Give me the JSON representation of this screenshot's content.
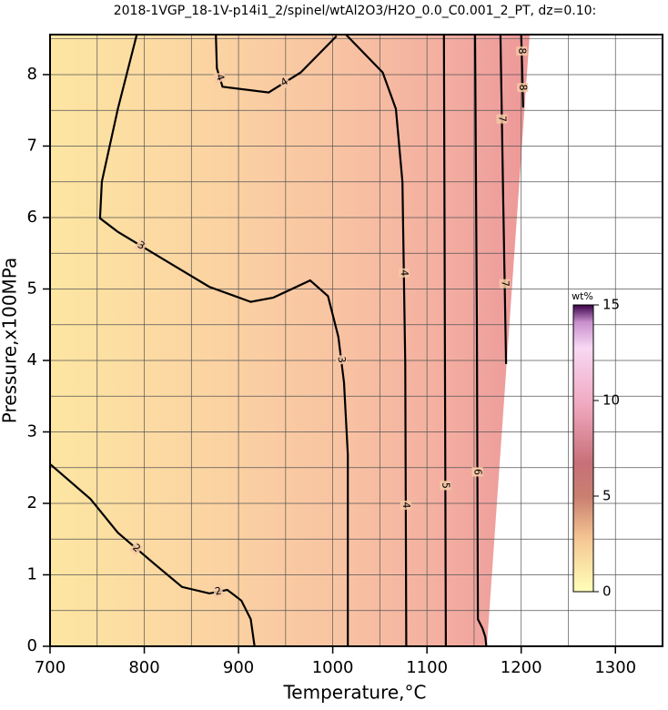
{
  "chart_data": {
    "type": "contour",
    "title": "2018-1VGP_18-1V-p14i1_2/spinel/wtAl2O3/H2O_0.0_C0.001_2_PT, dz=0.10:",
    "x_label": "Temperature,°C",
    "y_label": "Pressure,x100MPa",
    "xlim": [
      700,
      1350
    ],
    "ylim": [
      0,
      8.56
    ],
    "xticks": [
      700,
      800,
      900,
      1000,
      1100,
      1200,
      1300
    ],
    "yticks": [
      0,
      1,
      2,
      3,
      4,
      5,
      6,
      7,
      8
    ],
    "grid": true,
    "contours": [
      {
        "level": 2,
        "x": [
          700,
          743,
          772,
          811,
          840,
          869,
          888,
          903,
          913,
          917
        ],
        "y": [
          2.55,
          2.06,
          1.59,
          1.15,
          0.83,
          0.74,
          0.79,
          0.64,
          0.38,
          0
        ]
      },
      {
        "level": 3,
        "x": [
          792,
          772,
          755,
          753,
          772,
          821,
          869,
          913,
          937,
          976,
          995,
          1006,
          1012,
          1016,
          1016,
          1016
        ],
        "y": [
          8.56,
          7.52,
          6.5,
          5.99,
          5.8,
          5.41,
          5.03,
          4.82,
          4.88,
          5.12,
          4.9,
          4.33,
          3.69,
          2.68,
          1.4,
          0
        ]
      },
      {
        "level": 4,
        "x": [
          876,
          877,
          883,
          932,
          966,
          1004,
          null,
          1014,
          1053,
          1067,
          1074,
          1077,
          1078
        ],
        "y": [
          8.56,
          8.09,
          7.83,
          7.75,
          8.03,
          8.54,
          null,
          8.56,
          8.03,
          7.52,
          6.5,
          3.95,
          0
        ]
      },
      {
        "level": 5,
        "x": [
          1118,
          1119,
          1120
        ],
        "y": [
          8.56,
          4.5,
          0
        ]
      },
      {
        "level": 6,
        "x": [
          1151,
          1153,
          1154,
          1159,
          1162,
          1163
        ],
        "y": [
          8.56,
          4.5,
          0.38,
          0.25,
          0.13,
          0
        ]
      },
      {
        "level": 7,
        "x": [
          1178,
          1181,
          1184
        ],
        "y": [
          8.56,
          6.2,
          3.95
        ]
      },
      {
        "level": 8,
        "x": [
          1200,
          1201,
          1202
        ],
        "y": [
          8.56,
          8.1,
          7.54
        ]
      }
    ],
    "colorbar": {
      "label": "wt%",
      "lim": [
        0,
        15
      ],
      "ticks": [
        0,
        5,
        10,
        15
      ]
    }
  }
}
